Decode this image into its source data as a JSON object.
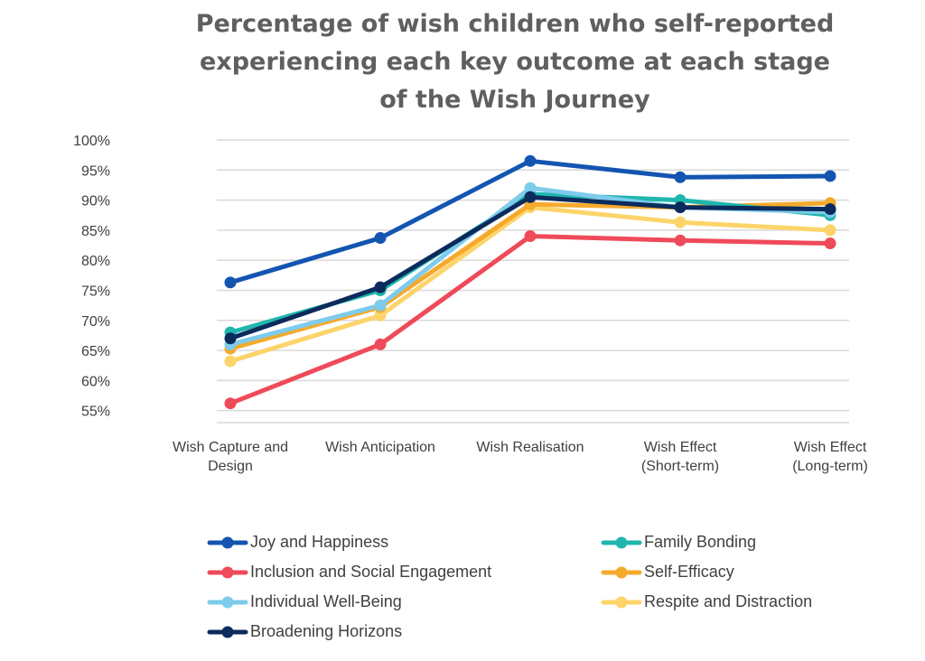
{
  "chart_data": {
    "type": "line",
    "title_lines": [
      "Percentage of wish children who self-reported",
      "experiencing each key outcome at each stage",
      "of the Wish Journey"
    ],
    "categories": [
      [
        "Wish Capture and",
        "Design"
      ],
      [
        "Wish Anticipation"
      ],
      [
        "Wish Realisation"
      ],
      [
        "Wish Effect",
        "(Short-term)"
      ],
      [
        "Wish Effect",
        "(Long-term)"
      ]
    ],
    "ylim": [
      53,
      100
    ],
    "yticks": [
      100,
      95,
      90,
      85,
      80,
      75,
      70,
      65,
      60,
      55
    ],
    "ytick_labels": [
      "100%",
      "95%",
      "90%",
      "85%",
      "80%",
      "75%",
      "70%",
      "65%",
      "60%",
      "55%"
    ],
    "grid": true,
    "legend_position": "bottom",
    "series": [
      {
        "name": "Inclusion and Social Engagement",
        "color": "#ef4a5a",
        "values": [
          56.2,
          66.0,
          84.0,
          83.3,
          82.8
        ]
      },
      {
        "name": "Respite and Distraction",
        "color": "#fcd46a",
        "values": [
          63.2,
          70.8,
          88.8,
          86.3,
          85.0
        ]
      },
      {
        "name": "Self-Efficacy",
        "color": "#f5aa2c",
        "values": [
          65.3,
          72.2,
          89.3,
          88.8,
          89.5
        ]
      },
      {
        "name": "Family Bonding",
        "color": "#1fb6ad",
        "values": [
          68.0,
          75.0,
          91.0,
          90.0,
          87.5
        ]
      },
      {
        "name": "Individual Well-Being",
        "color": "#7ecbec",
        "values": [
          66.0,
          72.5,
          92.0,
          88.8,
          88.0
        ]
      },
      {
        "name": "Broadening Horizons",
        "color": "#0b2b5c",
        "values": [
          67.0,
          75.5,
          90.5,
          88.8,
          88.5
        ]
      },
      {
        "name": "Joy and Happiness",
        "color": "#1355b1",
        "values": [
          76.3,
          83.7,
          96.5,
          93.8,
          94.0
        ]
      }
    ],
    "legend": [
      {
        "name": "Joy and Happiness",
        "color": "#1355b1"
      },
      {
        "name": "Family Bonding",
        "color": "#1fb6ad"
      },
      {
        "name": "Inclusion and Social Engagement",
        "color": "#ef4a5a"
      },
      {
        "name": "Self-Efficacy",
        "color": "#f5aa2c"
      },
      {
        "name": "Individual Well-Being",
        "color": "#7ecbec"
      },
      {
        "name": "Respite and Distraction",
        "color": "#fcd46a"
      },
      {
        "name": "Broadening Horizons",
        "color": "#0b2b5c"
      }
    ]
  }
}
